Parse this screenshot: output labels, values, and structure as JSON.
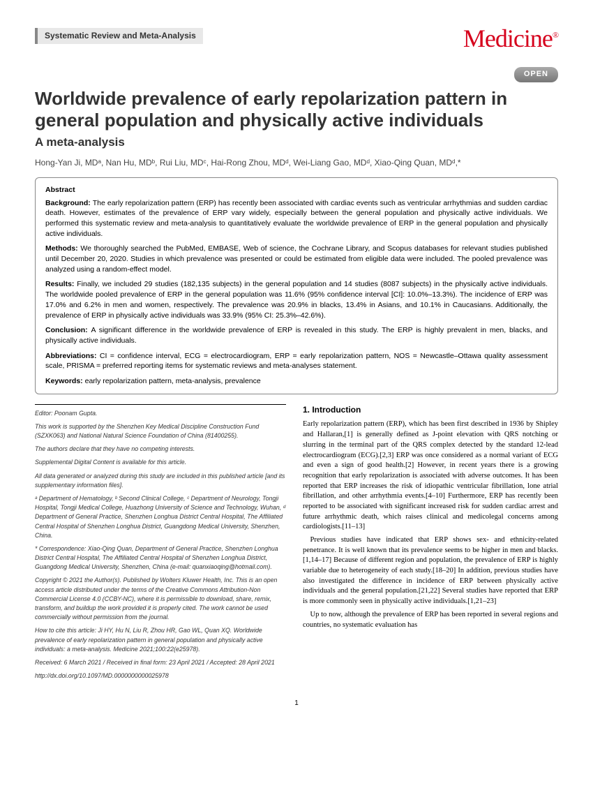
{
  "header": {
    "section_label": "Systematic Review and Meta-Analysis",
    "journal": "Medicine",
    "open_badge": "OPEN"
  },
  "title": "Worldwide prevalence of early repolarization pattern in general population and physically active individuals",
  "subtitle": "A meta-analysis",
  "authors": "Hong-Yan Ji, MDᵃ, Nan Hu, MDᵇ, Rui Liu, MDᶜ, Hai-Rong Zhou, MDᵈ, Wei-Liang Gao, MDᵈ, Xiao-Qing Quan, MDᵈ,*",
  "abstract": {
    "label": "Abstract",
    "background": "The early repolarization pattern (ERP) has recently been associated with cardiac events such as ventricular arrhythmias and sudden cardiac death. However, estimates of the prevalence of ERP vary widely, especially between the general population and physically active individuals. We performed this systematic review and meta-analysis to quantitatively evaluate the worldwide prevalence of ERP in the general population and physically active individuals.",
    "methods": "We thoroughly searched the PubMed, EMBASE, Web of science, the Cochrane Library, and Scopus databases for relevant studies published until December 20, 2020. Studies in which prevalence was presented or could be estimated from eligible data were included. The pooled prevalence was analyzed using a random-effect model.",
    "results": "Finally, we included 29 studies (182,135 subjects) in the general population and 14 studies (8087 subjects) in the physically active individuals. The worldwide pooled prevalence of ERP in the general population was 11.6% (95% confidence interval [CI]: 10.0%–13.3%). The incidence of ERP was 17.0% and 6.2% in men and women, respectively. The prevalence was 20.9% in blacks, 13.4% in Asians, and 10.1% in Caucasians. Additionally, the prevalence of ERP in physically active individuals was 33.9% (95% CI: 25.3%–42.6%).",
    "conclusion": "A significant difference in the worldwide prevalence of ERP is revealed in this study. The ERP is highly prevalent in men, blacks, and physically active individuals.",
    "abbreviations": "CI = confidence interval, ECG = electrocardiogram, ERP = early repolarization pattern, NOS = Newcastle–Ottawa quality assessment scale, PRISMA = preferred reporting items for systematic reviews and meta-analyses statement.",
    "keywords": "early repolarization pattern, meta-analysis, prevalence"
  },
  "footer": {
    "editor": "Editor: Poonam Gupta.",
    "funding": "This work is supported by the Shenzhen Key Medical Discipline Construction Fund (SZXK063) and National Natural Science Foundation of China (81400255).",
    "competing": "The authors declare that they have no competing interests.",
    "supplemental": "Supplemental Digital Content is available for this article.",
    "data": "All data generated or analyzed during this study are included in this published article [and its supplementary information files].",
    "affiliations": "ᵃ Department of Hematology, ᵇ Second Clinical College, ᶜ Department of Neurology, Tongji Hospital, Tongji Medical College, Huazhong University of Science and Technology, Wuhan, ᵈ Department of General Practice, Shenzhen Longhua District Central Hospital, The Affiliated Central Hospital of Shenzhen Longhua District, Guangdong Medical University, Shenzhen, China.",
    "correspondence": "* Correspondence: Xiao-Qing Quan, Department of General Practice, Shenzhen Longhua District Central Hospital, The Affiliated Central Hospital of Shenzhen Longhua District, Guangdong Medical University, Shenzhen, China (e-mail: quanxiaoqing@hotmail.com).",
    "copyright": "Copyright © 2021 the Author(s). Published by Wolters Kluwer Health, Inc. This is an open access article distributed under the terms of the Creative Commons Attribution-Non Commercial License 4.0 (CCBY-NC), where it is permissible to download, share, remix, transform, and buildup the work provided it is properly cited. The work cannot be used commercially without permission from the journal.",
    "cite": "How to cite this article: Ji HY, Hu N, Liu R, Zhou HR, Gao WL, Quan XQ. Worldwide prevalence of early repolarization pattern in general population and physically active individuals: a meta-analysis. Medicine 2021;100:22(e25978).",
    "dates": "Received: 6 March 2021 / Received in final form: 23 April 2021 / Accepted: 28 April 2021",
    "doi": "http://dx.doi.org/10.1097/MD.0000000000025978"
  },
  "intro": {
    "heading": "1. Introduction",
    "p1": "Early repolarization pattern (ERP), which has been first described in 1936 by Shipley and Hallaran,[1] is generally defined as J-point elevation with QRS notching or slurring in the terminal part of the QRS complex detected by the standard 12-lead electrocardiogram (ECG).[2,3] ERP was once considered as a normal variant of ECG and even a sign of good health.[2] However, in recent years there is a growing recognition that early repolarization is associated with adverse outcomes. It has been reported that ERP increases the risk of idiopathic ventricular fibrillation, lone atrial fibrillation, and other arrhythmia events.[4–10] Furthermore, ERP has recently been reported to be associated with significant increased risk for sudden cardiac arrest and future arrhythmic death, which raises clinical and medicolegal concerns among cardiologists.[11–13]",
    "p2": "Previous studies have indicated that ERP shows sex- and ethnicity-related penetrance. It is well known that its prevalence seems to be higher in men and blacks.[1,14–17] Because of different region and population, the prevalence of ERP is highly variable due to heterogeneity of each study.[18–20] In addition, previous studies have also investigated the difference in incidence of ERP between physically active individuals and the general population.[21,22] Several studies have reported that ERP is more commonly seen in physically active individuals.[1,21–23]",
    "p3": "Up to now, although the prevalence of ERP has been reported in several regions and countries, no systematic evaluation has"
  },
  "page_number": "1"
}
